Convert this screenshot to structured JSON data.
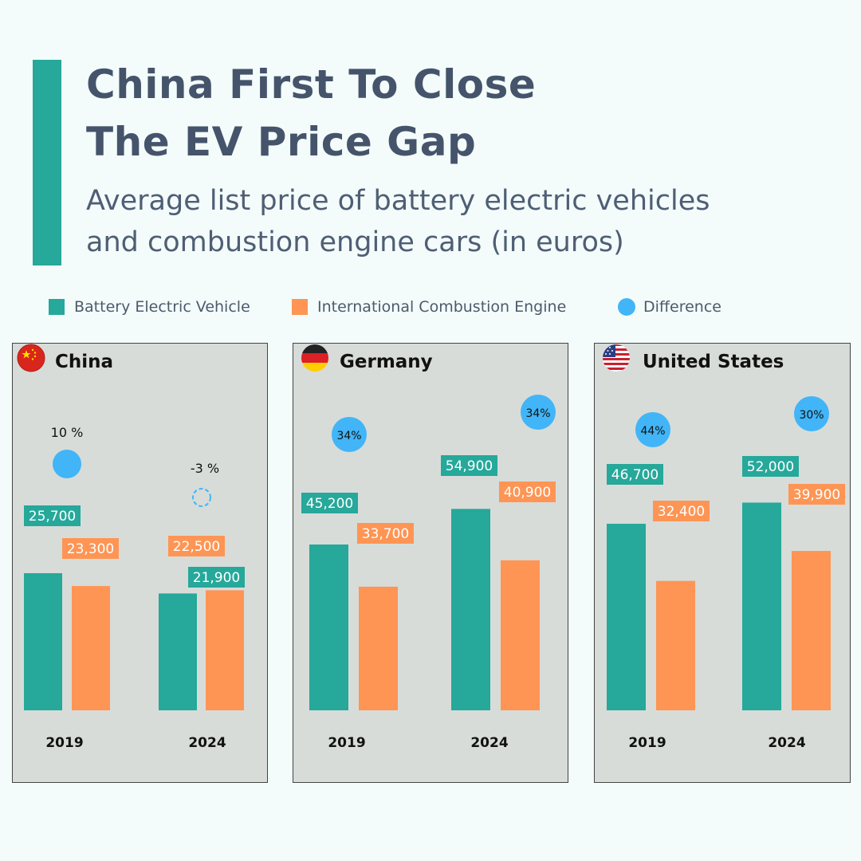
{
  "header": {
    "title_line1": "China First To Close",
    "title_line2": "The EV Price Gap",
    "subtitle_line1": "Average list price of battery electric vehicles",
    "subtitle_line2": "and combustion engine cars (in euros)"
  },
  "legend": {
    "bev": "Battery Electric Vehicle",
    "ice": "International Combustion Engine",
    "diff": "Difference"
  },
  "colors": {
    "bev": "#26a89a",
    "ice": "#fe9554",
    "diff": "#41b5f8",
    "accent": "#26a89a"
  },
  "chart_data": [
    {
      "type": "bar",
      "title": "China",
      "flag": "china-flag",
      "categories": [
        "2019",
        "2024"
      ],
      "series": [
        {
          "name": "Battery Electric Vehicle",
          "values": [
            25700,
            21900
          ],
          "labels": [
            "25,700",
            "21,900"
          ]
        },
        {
          "name": "International Combustion Engine",
          "values": [
            23300,
            22500
          ],
          "labels": [
            "23,300",
            "22,500"
          ]
        }
      ],
      "difference": {
        "values": [
          10,
          -3
        ],
        "labels": [
          "10 %",
          "-3 %"
        ]
      }
    },
    {
      "type": "bar",
      "title": "Germany",
      "flag": "germany-flag",
      "categories": [
        "2019",
        "2024"
      ],
      "series": [
        {
          "name": "Battery Electric Vehicle",
          "values": [
            45200,
            54900
          ],
          "labels": [
            "45,200",
            "54,900"
          ]
        },
        {
          "name": "International Combustion Engine",
          "values": [
            33700,
            40900
          ],
          "labels": [
            "33,700",
            "40,900"
          ]
        }
      ],
      "difference": {
        "values": [
          34,
          34
        ],
        "labels": [
          "34%",
          "34%"
        ]
      }
    },
    {
      "type": "bar",
      "title": "United States",
      "flag": "usa-flag",
      "categories": [
        "2019",
        "2024"
      ],
      "series": [
        {
          "name": "Battery Electric Vehicle",
          "values": [
            46700,
            52000
          ],
          "labels": [
            "46,700",
            "52,000"
          ]
        },
        {
          "name": "International Combustion Engine",
          "values": [
            32400,
            39900
          ],
          "labels": [
            "32,400",
            "39,900"
          ]
        }
      ],
      "difference": {
        "values": [
          44,
          30
        ],
        "labels": [
          "44%",
          "30%"
        ]
      }
    }
  ]
}
